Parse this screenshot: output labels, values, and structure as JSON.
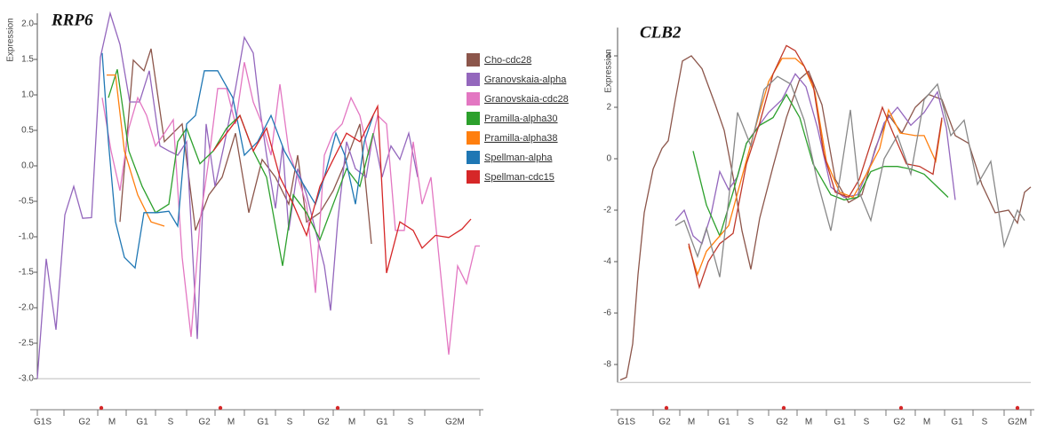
{
  "chart_data": [
    {
      "type": "line",
      "title": "RRP6",
      "y_label": "Expression",
      "xlim": [
        0,
        498
      ],
      "ylim": [
        -3.0,
        2.15
      ],
      "yticks": [
        {
          "value": -3,
          "label": "-3.0"
        },
        -2.5,
        {
          "value": -2,
          "label": "-2.0"
        },
        -1.5,
        {
          "value": -1,
          "label": "-1.0"
        },
        -0.5,
        {
          "value": 0,
          "label": "0.0"
        },
        0.5,
        {
          "value": 1,
          "label": "1.0"
        },
        1.5,
        {
          "value": 2,
          "label": "2.0"
        }
      ],
      "xticks": [
        {
          "value": 6,
          "label": "G1S"
        },
        {
          "value": 53,
          "label": "G2"
        },
        {
          "value": 84,
          "label": "M"
        },
        {
          "value": 118,
          "label": "G1"
        },
        {
          "value": 150,
          "label": "S"
        },
        {
          "value": 188,
          "label": "G2"
        },
        {
          "value": 218,
          "label": "M"
        },
        {
          "value": 254,
          "label": "G1"
        },
        {
          "value": 284,
          "label": "S"
        },
        {
          "value": 322,
          "label": "G2"
        },
        {
          "value": 354,
          "label": "M"
        },
        {
          "value": 388,
          "label": "G1"
        },
        {
          "value": 420,
          "label": "S"
        },
        {
          "value": 470,
          "label": "G2M"
        }
      ],
      "x_tick_marks": [
        0,
        30,
        68,
        100,
        133,
        168,
        200,
        233,
        268,
        300,
        333,
        368,
        401,
        436,
        498
      ],
      "markers": [
        72,
        206,
        338
      ],
      "marker_color": "#d62728",
      "legend": "right",
      "series": [
        {
          "name": "Cho-cdc28",
          "color": "#8c564b",
          "x": [
            93,
            108,
            120,
            128,
            143,
            163,
            178,
            193,
            208,
            223,
            238,
            253,
            268,
            283,
            293,
            303,
            318,
            333,
            348,
            363,
            376
          ],
          "values": [
            -0.79,
            1.49,
            1.34,
            1.65,
            0.34,
            0.59,
            -0.91,
            -0.41,
            -0.16,
            0.46,
            -0.66,
            0.09,
            -0.16,
            -0.54,
            0.15,
            -0.79,
            -0.66,
            -0.35,
            0.09,
            0.59,
            -1.1
          ]
        },
        {
          "name": "Granovskaia-alpha",
          "color": "#9467bd",
          "x": [
            0,
            10,
            21,
            31,
            41,
            51,
            61,
            71,
            82,
            93,
            104,
            115,
            126,
            138,
            148,
            158,
            168,
            180,
            190,
            200,
            210,
            223,
            233,
            243,
            250,
            258,
            268,
            276,
            283,
            293,
            303,
            313,
            323,
            330,
            338,
            348,
            358,
            370,
            378,
            388,
            398,
            408,
            418,
            428
          ],
          "values": [
            -3.0,
            -1.31,
            -2.31,
            -0.69,
            -0.29,
            -0.74,
            -0.73,
            1.53,
            2.15,
            1.71,
            0.9,
            0.9,
            1.34,
            0.28,
            0.21,
            0.15,
            0.34,
            -2.44,
            0.59,
            -0.29,
            0.28,
            1.09,
            1.81,
            1.59,
            0.84,
            0.15,
            -0.6,
            0.28,
            -0.91,
            -0.04,
            -0.41,
            -0.91,
            -1.41,
            -2.04,
            -0.79,
            0.34,
            -0.04,
            -0.16,
            0.46,
            -0.16,
            0.28,
            0.09,
            0.46,
            -0.16
          ]
        },
        {
          "name": "Granovskaia-cdc28",
          "color": "#e377c2",
          "x": [
            73,
            83,
            93,
            103,
            113,
            123,
            133,
            143,
            153,
            163,
            173,
            183,
            193,
            203,
            213,
            223,
            233,
            243,
            253,
            263,
            273,
            283,
            293,
            303,
            313,
            323,
            333,
            343,
            353,
            363,
            373,
            383,
            393,
            403,
            413,
            423,
            433,
            443,
            453,
            463,
            473,
            483,
            493,
            498
          ],
          "values": [
            0.96,
            0.21,
            -0.35,
            0.53,
            0.96,
            0.71,
            0.28,
            0.46,
            0.65,
            -1.29,
            -2.41,
            -0.79,
            0.09,
            1.09,
            1.09,
            0.59,
            1.46,
            0.9,
            0.59,
            0.15,
            1.15,
            0.21,
            -0.16,
            -0.54,
            -1.79,
            0.15,
            0.46,
            0.59,
            0.96,
            0.71,
            0.15,
            0.71,
            0.59,
            -0.91,
            -0.91,
            0.34,
            -0.54,
            -0.16,
            -1.41,
            -2.66,
            -1.41,
            -1.66,
            -1.13,
            -1.13
          ]
        },
        {
          "name": "Pramilla-alpha30",
          "color": "#2ca02c",
          "x": [
            80,
            90,
            103,
            118,
            133,
            148,
            158,
            168,
            183,
            198,
            213,
            228,
            243,
            258,
            276,
            288,
            303,
            318,
            333,
            348,
            363,
            378
          ],
          "values": [
            0.96,
            1.36,
            0.21,
            -0.29,
            -0.66,
            -0.54,
            0.34,
            0.53,
            0.03,
            0.21,
            0.53,
            0.71,
            0.21,
            -0.16,
            -1.41,
            -0.41,
            -0.66,
            -1.04,
            -0.54,
            -0.04,
            -0.29,
            0.46
          ]
        },
        {
          "name": "Pramilla-alpha38",
          "color": "#ff7f0e",
          "x": [
            78,
            88,
            98,
            113,
            128,
            143
          ],
          "values": [
            1.28,
            1.28,
            0.21,
            -0.41,
            -0.79,
            -0.85
          ]
        },
        {
          "name": "Spellman-alpha",
          "color": "#1f77b4",
          "x": [
            73,
            80,
            88,
            98,
            110,
            120,
            135,
            148,
            158,
            168,
            178,
            188,
            203,
            220,
            233,
            248,
            263,
            278,
            298,
            313,
            323,
            336,
            346,
            358,
            368,
            378
          ],
          "values": [
            1.59,
            0.34,
            -0.79,
            -1.29,
            -1.44,
            -0.66,
            -0.66,
            -0.64,
            -0.85,
            0.59,
            0.71,
            1.34,
            1.34,
            0.96,
            0.15,
            0.34,
            0.71,
            0.21,
            -0.23,
            -0.54,
            -0.16,
            0.46,
            0.15,
            -0.54,
            0.34,
            0.71
          ]
        },
        {
          "name": "Spellman-cdc15",
          "color": "#d62728",
          "x": [
            198,
            213,
            228,
            243,
            258,
            273,
            288,
            303,
            318,
            333,
            348,
            363,
            373,
            383,
            393,
            408,
            423,
            433,
            448,
            463,
            478,
            488
          ],
          "values": [
            0.21,
            0.46,
            0.71,
            0.21,
            0.53,
            -0.16,
            -0.54,
            -0.98,
            -0.29,
            0.09,
            0.46,
            0.34,
            0.59,
            0.84,
            -1.51,
            -0.79,
            -0.91,
            -1.16,
            -0.98,
            -1.01,
            -0.89,
            -0.75
          ]
        }
      ]
    },
    {
      "type": "line",
      "title": "CLB2",
      "y_label": "Expression",
      "xlim": [
        0,
        465
      ],
      "ylim": [
        -8.7,
        5.1
      ],
      "yticks": [
        -8,
        -6,
        -4,
        -2,
        0,
        2,
        4
      ],
      "xticks": [
        {
          "value": 10,
          "label": "G1S"
        },
        {
          "value": 53,
          "label": "G2"
        },
        {
          "value": 83,
          "label": "M"
        },
        {
          "value": 120,
          "label": "G1"
        },
        {
          "value": 150,
          "label": "S"
        },
        {
          "value": 185,
          "label": "G2"
        },
        {
          "value": 215,
          "label": "M"
        },
        {
          "value": 250,
          "label": "G1"
        },
        {
          "value": 280,
          "label": "S"
        },
        {
          "value": 317,
          "label": "G2"
        },
        {
          "value": 348,
          "label": "M"
        },
        {
          "value": 382,
          "label": "G1"
        },
        {
          "value": 413,
          "label": "S"
        },
        {
          "value": 450,
          "label": "G2M"
        }
      ],
      "x_tick_marks": [
        0,
        40,
        70,
        102,
        135,
        170,
        202,
        235,
        267,
        302,
        335,
        368,
        400,
        435,
        465
      ],
      "markers": [
        55,
        187,
        319,
        450
      ],
      "marker_color": "#d62728",
      "series": [
        {
          "color": "#8c564b",
          "x": [
            3,
            10,
            17,
            23,
            30,
            40,
            50,
            57,
            65,
            73,
            83,
            95,
            110,
            120,
            130,
            140,
            150,
            160,
            175,
            190,
            205,
            215,
            230,
            245,
            260,
            275,
            290,
            305,
            320,
            335,
            350,
            365,
            380,
            395,
            410,
            425,
            440,
            450,
            458,
            465
          ],
          "values": [
            -8.6,
            -8.5,
            -7.2,
            -4.5,
            -2.1,
            -0.4,
            0.4,
            0.7,
            2.3,
            3.8,
            4.0,
            3.5,
            2.1,
            1.1,
            -0.7,
            -2.8,
            -4.3,
            -2.3,
            -0.3,
            1.6,
            3.1,
            3.4,
            2.1,
            -0.8,
            -1.7,
            -1.4,
            0.4,
            1.7,
            1.0,
            2.0,
            2.5,
            2.3,
            0.9,
            0.6,
            -1.0,
            -2.1,
            -2.0,
            -2.5,
            -1.3,
            -1.1
          ]
        },
        {
          "color": "#9467bd",
          "x": [
            65,
            75,
            85,
            95,
            105,
            115,
            125,
            135,
            145,
            155,
            170,
            185,
            200,
            212,
            225,
            240,
            255,
            270,
            285,
            300,
            315,
            330,
            345,
            360,
            370,
            380
          ],
          "values": [
            -2.4,
            -2.0,
            -3.0,
            -3.3,
            -2.2,
            -0.5,
            -1.2,
            -0.7,
            0.6,
            1.1,
            1.8,
            2.3,
            3.3,
            2.8,
            1.2,
            -1.1,
            -1.5,
            -1.4,
            -0.2,
            1.4,
            2.0,
            1.3,
            1.8,
            2.6,
            1.2,
            -1.6
          ]
        },
        {
          "color": "#2ca02c",
          "x": [
            85,
            100,
            115,
            130,
            145,
            160,
            175,
            190,
            205,
            220,
            240,
            255,
            270,
            285,
            300,
            315,
            330,
            345,
            360,
            372
          ],
          "values": [
            0.3,
            -1.8,
            -3.0,
            -1.3,
            0.6,
            1.3,
            1.6,
            2.5,
            1.6,
            -0.2,
            -1.4,
            -1.6,
            -1.5,
            -0.5,
            -0.3,
            -0.3,
            -0.4,
            -0.6,
            -1.1,
            -1.5
          ]
        },
        {
          "color": "#ff7f0e",
          "x": [
            80,
            90,
            100,
            110,
            125,
            140,
            155,
            170,
            185,
            200,
            210,
            222,
            235,
            250,
            265,
            280,
            295,
            305,
            318,
            335,
            345,
            358,
            365
          ],
          "values": [
            -3.4,
            -4.5,
            -3.6,
            -3.2,
            -2.6,
            -0.7,
            1.2,
            3.0,
            3.9,
            3.9,
            3.6,
            2.6,
            -0.1,
            -1.3,
            -1.5,
            -0.6,
            0.4,
            1.9,
            1.0,
            0.9,
            0.9,
            -0.1,
            1.5
          ]
        },
        {
          "color": "#c0392b",
          "x": [
            80,
            92,
            102,
            115,
            130,
            145,
            160,
            175,
            190,
            200,
            210,
            220,
            232,
            245,
            260,
            272,
            285,
            298,
            310,
            325,
            340,
            355,
            365
          ],
          "values": [
            -3.3,
            -5.0,
            -4.0,
            -3.3,
            -2.9,
            -0.2,
            1.4,
            3.3,
            4.4,
            4.2,
            3.6,
            2.9,
            0.2,
            -1.3,
            -1.5,
            -0.8,
            0.6,
            2.0,
            1.0,
            -0.2,
            -0.3,
            -0.6,
            1.6
          ]
        },
        {
          "color": "#888888",
          "x": [
            65,
            75,
            90,
            100,
            115,
            125,
            135,
            150,
            165,
            180,
            195,
            210,
            225,
            240,
            250,
            262,
            272,
            285,
            300,
            315,
            330,
            345,
            360,
            375,
            390,
            405,
            420,
            435,
            450,
            458
          ],
          "values": [
            -2.6,
            -2.4,
            -3.8,
            -2.7,
            -4.6,
            -1.6,
            1.8,
            0.5,
            2.7,
            3.2,
            2.9,
            1.5,
            -0.9,
            -2.8,
            -0.8,
            1.9,
            -1.3,
            -2.4,
            0.0,
            0.9,
            -0.6,
            2.3,
            2.9,
            0.9,
            1.5,
            -1.0,
            -0.1,
            -3.4,
            -2.0,
            -2.4
          ]
        }
      ]
    }
  ]
}
